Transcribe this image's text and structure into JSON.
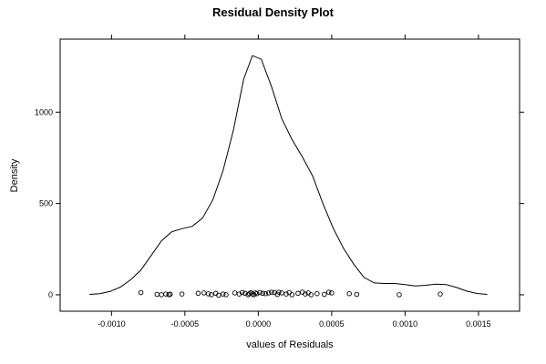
{
  "chart_data": {
    "type": "line",
    "title": "Residual Density Plot",
    "xlabel": "values of Residuals",
    "ylabel": "Density",
    "xlim": [
      -0.00135,
      0.00178
    ],
    "ylim": [
      -90,
      1400
    ],
    "x_ticks": [
      -0.001,
      -0.0005,
      0.0,
      0.0005,
      0.001,
      0.0015
    ],
    "x_tick_labels": [
      "-0.0010",
      "-0.0005",
      "0.0000",
      "0.0005",
      "0.0010",
      "0.0015"
    ],
    "y_ticks": [
      0,
      500,
      1000
    ],
    "y_tick_labels": [
      "0",
      "500",
      "1000"
    ],
    "grid": false,
    "series": [
      {
        "kind": "density-curve",
        "x": [
          -0.00115,
          -0.00108,
          -0.00101,
          -0.00094,
          -0.00087,
          -0.0008,
          -0.00073,
          -0.00066,
          -0.00059,
          -0.00052,
          -0.00045,
          -0.00038,
          -0.00031,
          -0.00024,
          -0.00017,
          -0.0001,
          -4e-05,
          2e-05,
          9e-05,
          0.00016,
          0.00023,
          0.0003,
          0.00037,
          0.00044,
          0.00051,
          0.00058,
          0.00065,
          0.00072,
          0.00079,
          0.00086,
          0.00093,
          0.001,
          0.00107,
          0.00114,
          0.00121,
          0.00128,
          0.00135,
          0.00142,
          0.00149,
          0.00156
        ],
        "y": [
          2,
          6,
          18,
          42,
          82,
          135,
          215,
          295,
          345,
          362,
          375,
          420,
          520,
          680,
          900,
          1180,
          1310,
          1290,
          1140,
          965,
          850,
          755,
          650,
          500,
          365,
          255,
          168,
          95,
          65,
          62,
          62,
          56,
          48,
          52,
          58,
          56,
          40,
          20,
          7,
          2
        ]
      }
    ],
    "rug_points": {
      "x": [
        -0.0008,
        -0.00069,
        -0.00066,
        -0.00063,
        -0.00061,
        -0.0006,
        -0.00052,
        -0.00041,
        -0.00037,
        -0.00034,
        -0.00032,
        -0.00029,
        -0.00027,
        -0.00024,
        -0.00022,
        -0.00016,
        -0.00013,
        -0.00011,
        -9e-05,
        -7e-05,
        -6e-05,
        -5e-05,
        -4e-05,
        -3e-05,
        -2e-05,
        -1e-05,
        1e-05,
        3e-05,
        5e-05,
        7e-05,
        9e-05,
        0.00011,
        0.00013,
        0.00014,
        0.00016,
        0.00019,
        0.00021,
        0.00023,
        0.00027,
        0.0003,
        0.00032,
        0.00034,
        0.00036,
        0.0004,
        0.00045,
        0.00048,
        0.0005,
        0.00062,
        0.00067,
        0.00096,
        0.00124
      ],
      "y": [
        12,
        2,
        0,
        4,
        0,
        3,
        4,
        8,
        10,
        5,
        0,
        8,
        -3,
        4,
        0,
        10,
        4,
        12,
        8,
        0,
        6,
        12,
        4,
        0,
        10,
        6,
        12,
        8,
        6,
        10,
        14,
        12,
        2,
        14,
        10,
        4,
        12,
        0,
        8,
        14,
        4,
        10,
        0,
        6,
        2,
        14,
        10,
        6,
        2,
        0,
        4
      ]
    }
  }
}
